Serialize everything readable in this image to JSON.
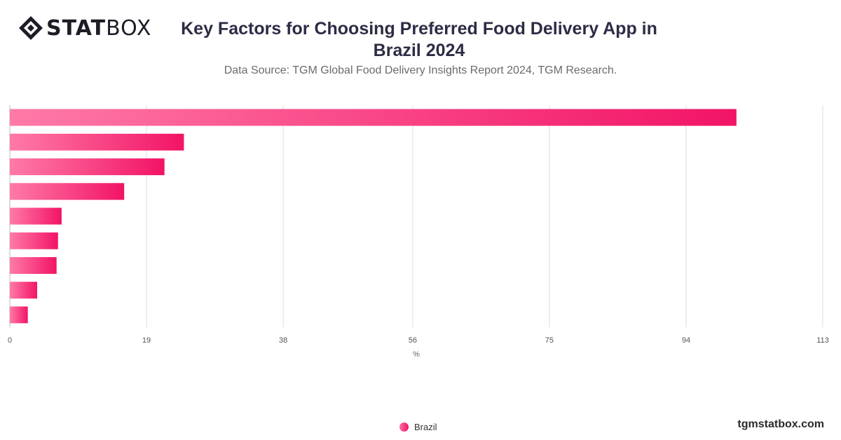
{
  "brand": {
    "bold": "STAT",
    "light": "BOX"
  },
  "title": "Key Factors for Choosing Preferred Food Delivery App in Brazil 2024",
  "subtitle": "Data Source: TGM Global Food Delivery Insights Report 2024, TGM Research.",
  "footer": "tgmstatbox.com",
  "colors": {
    "bar_start": "#ff7aa8",
    "bar_end": "#f21466",
    "grid": "#dddddd",
    "axis": "#bbbbbb"
  },
  "chart_data": {
    "type": "bar",
    "orientation": "horizontal",
    "xlabel": "%",
    "xlim": [
      0,
      113
    ],
    "xticks": [
      0,
      19,
      38,
      56,
      75,
      94,
      113
    ],
    "grid": true,
    "legend_position": "bottom",
    "series": [
      {
        "name": "Brazil",
        "values": [
          101,
          24.2,
          21.5,
          15.9,
          7.2,
          6.7,
          6.5,
          3.8,
          2.5
        ]
      }
    ]
  }
}
